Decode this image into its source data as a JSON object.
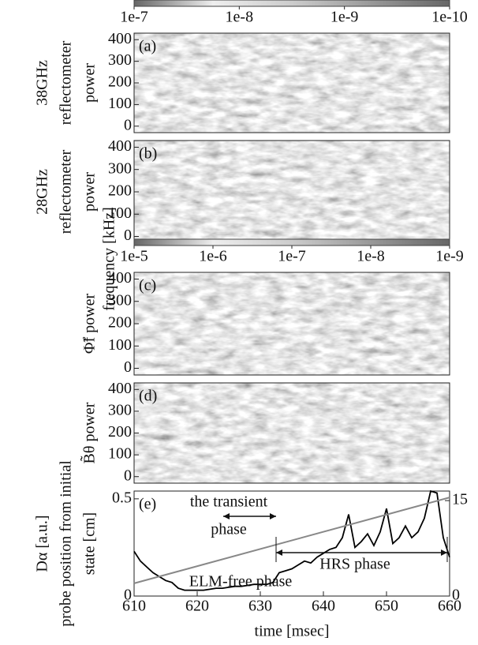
{
  "chart_data": [
    {
      "type": "spectrogram",
      "panel_label": "(a)",
      "ylabel": [
        "38GHz",
        "reflectometer",
        "power"
      ],
      "ylim": [
        -30,
        430
      ],
      "yticks": [
        0,
        100,
        200,
        300,
        400
      ],
      "colorbar": {
        "lim": [
          1e-07,
          1e-10
        ],
        "ticks": [
          {
            "value": 1e-07,
            "label": "1e-7"
          },
          {
            "value": 1e-08,
            "label": "1e-8"
          },
          {
            "value": 1e-09,
            "label": "1e-9"
          },
          {
            "value": 1e-10,
            "label": "1e-10"
          }
        ]
      }
    },
    {
      "type": "spectrogram",
      "panel_label": "(b)",
      "ylabel": [
        "28GHz",
        "reflectometer",
        "power"
      ],
      "ylim": [
        -30,
        430
      ],
      "yticks": [
        0,
        100,
        200,
        300,
        400
      ],
      "shared_ylabel": "frequency [kHz]"
    },
    {
      "type": "spectrogram",
      "panel_label": "(c)",
      "ylabel": [
        "Φ̃f power"
      ],
      "ylim": [
        -30,
        430
      ],
      "yticks": [
        0,
        100,
        200,
        300,
        400
      ],
      "colorbar": {
        "lim": [
          1e-05,
          1e-09
        ],
        "ticks": [
          {
            "value": 1e-05,
            "label": "1e-5"
          },
          {
            "value": 1e-06,
            "label": "1e-6"
          },
          {
            "value": 1e-07,
            "label": "1e-7"
          },
          {
            "value": 1e-08,
            "label": "1e-8"
          },
          {
            "value": 1e-09,
            "label": "1e-9"
          }
        ]
      }
    },
    {
      "type": "spectrogram",
      "panel_label": "(d)",
      "ylabel": [
        "B̃θ power"
      ],
      "ylim": [
        -30,
        430
      ],
      "yticks": [
        0,
        100,
        200,
        300,
        400
      ]
    },
    {
      "type": "line",
      "panel_label": "(e)",
      "ylabel": [
        "Dα [a.u.]"
      ],
      "y2label": [
        "probe position from initial",
        "state [cm]"
      ],
      "xlabel": "time [msec]",
      "xlim": [
        610,
        660
      ],
      "xticks": [
        610,
        620,
        630,
        640,
        650,
        660
      ],
      "ylim": [
        0,
        0.54
      ],
      "yticks": [
        0,
        0.5
      ],
      "y2lim": [
        0,
        16.5
      ],
      "y2ticks": [
        0,
        15
      ],
      "annotations": [
        "the transient",
        "phase",
        "ELM-free phase",
        "HRS phase"
      ],
      "series": [
        {
          "color": "#000000",
          "x": [
            610,
            611,
            612,
            613,
            614,
            615,
            616,
            617,
            618,
            619,
            620,
            621,
            622,
            623,
            624,
            625,
            626,
            627,
            628,
            629,
            630,
            631,
            632,
            633,
            634,
            635,
            636,
            637,
            638,
            639,
            640,
            641,
            642,
            643,
            644,
            645,
            646,
            647,
            648,
            649,
            650,
            651,
            652,
            653,
            654,
            655,
            656,
            657,
            658,
            659,
            660
          ],
          "values": [
            0.23,
            0.18,
            0.15,
            0.12,
            0.1,
            0.08,
            0.07,
            0.04,
            0.03,
            0.03,
            0.03,
            0.03,
            0.035,
            0.04,
            0.04,
            0.045,
            0.05,
            0.05,
            0.055,
            0.06,
            0.06,
            0.06,
            0.07,
            0.12,
            0.13,
            0.14,
            0.16,
            0.18,
            0.17,
            0.2,
            0.22,
            0.24,
            0.25,
            0.3,
            0.42,
            0.25,
            0.28,
            0.32,
            0.26,
            0.33,
            0.45,
            0.27,
            0.3,
            0.36,
            0.3,
            0.33,
            0.4,
            0.54,
            0.53,
            0.3,
            0.2
          ]
        },
        {
          "color": "#888888",
          "axis": "y2",
          "x": [
            610,
            660
          ],
          "values": [
            2,
            15.5
          ]
        }
      ]
    }
  ]
}
